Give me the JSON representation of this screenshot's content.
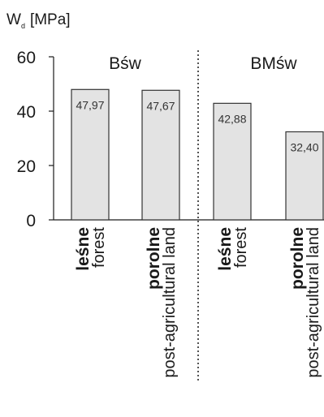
{
  "chart_data": {
    "type": "bar",
    "ylabel": {
      "main": "W",
      "subscript": "d",
      "unit": "[MPa]"
    },
    "ylim": [
      0,
      60
    ],
    "yticks": [
      "0",
      "20",
      "40",
      "60"
    ],
    "groups": [
      {
        "name": "Bśw"
      },
      {
        "name": "BMśw"
      }
    ],
    "categories": [
      {
        "group": "Bśw",
        "name_pl": "leśne",
        "name_en": "forest"
      },
      {
        "group": "Bśw",
        "name_pl": "porolne",
        "name_en": "post-agricultural land"
      },
      {
        "group": "BMśw",
        "name_pl": "leśne",
        "name_en": "forest"
      },
      {
        "group": "BMśw",
        "name_pl": "porolne",
        "name_en": "post-agricultural land"
      }
    ],
    "values": [
      47.97,
      47.67,
      42.88,
      32.4
    ],
    "value_labels": [
      "47,97",
      "47,67",
      "42,88",
      "32,40"
    ],
    "bar_color": "#e3e3e3",
    "bar_edge_color": "#333333",
    "separator": "dotted line between Bśw and BMśw",
    "grid": false
  }
}
